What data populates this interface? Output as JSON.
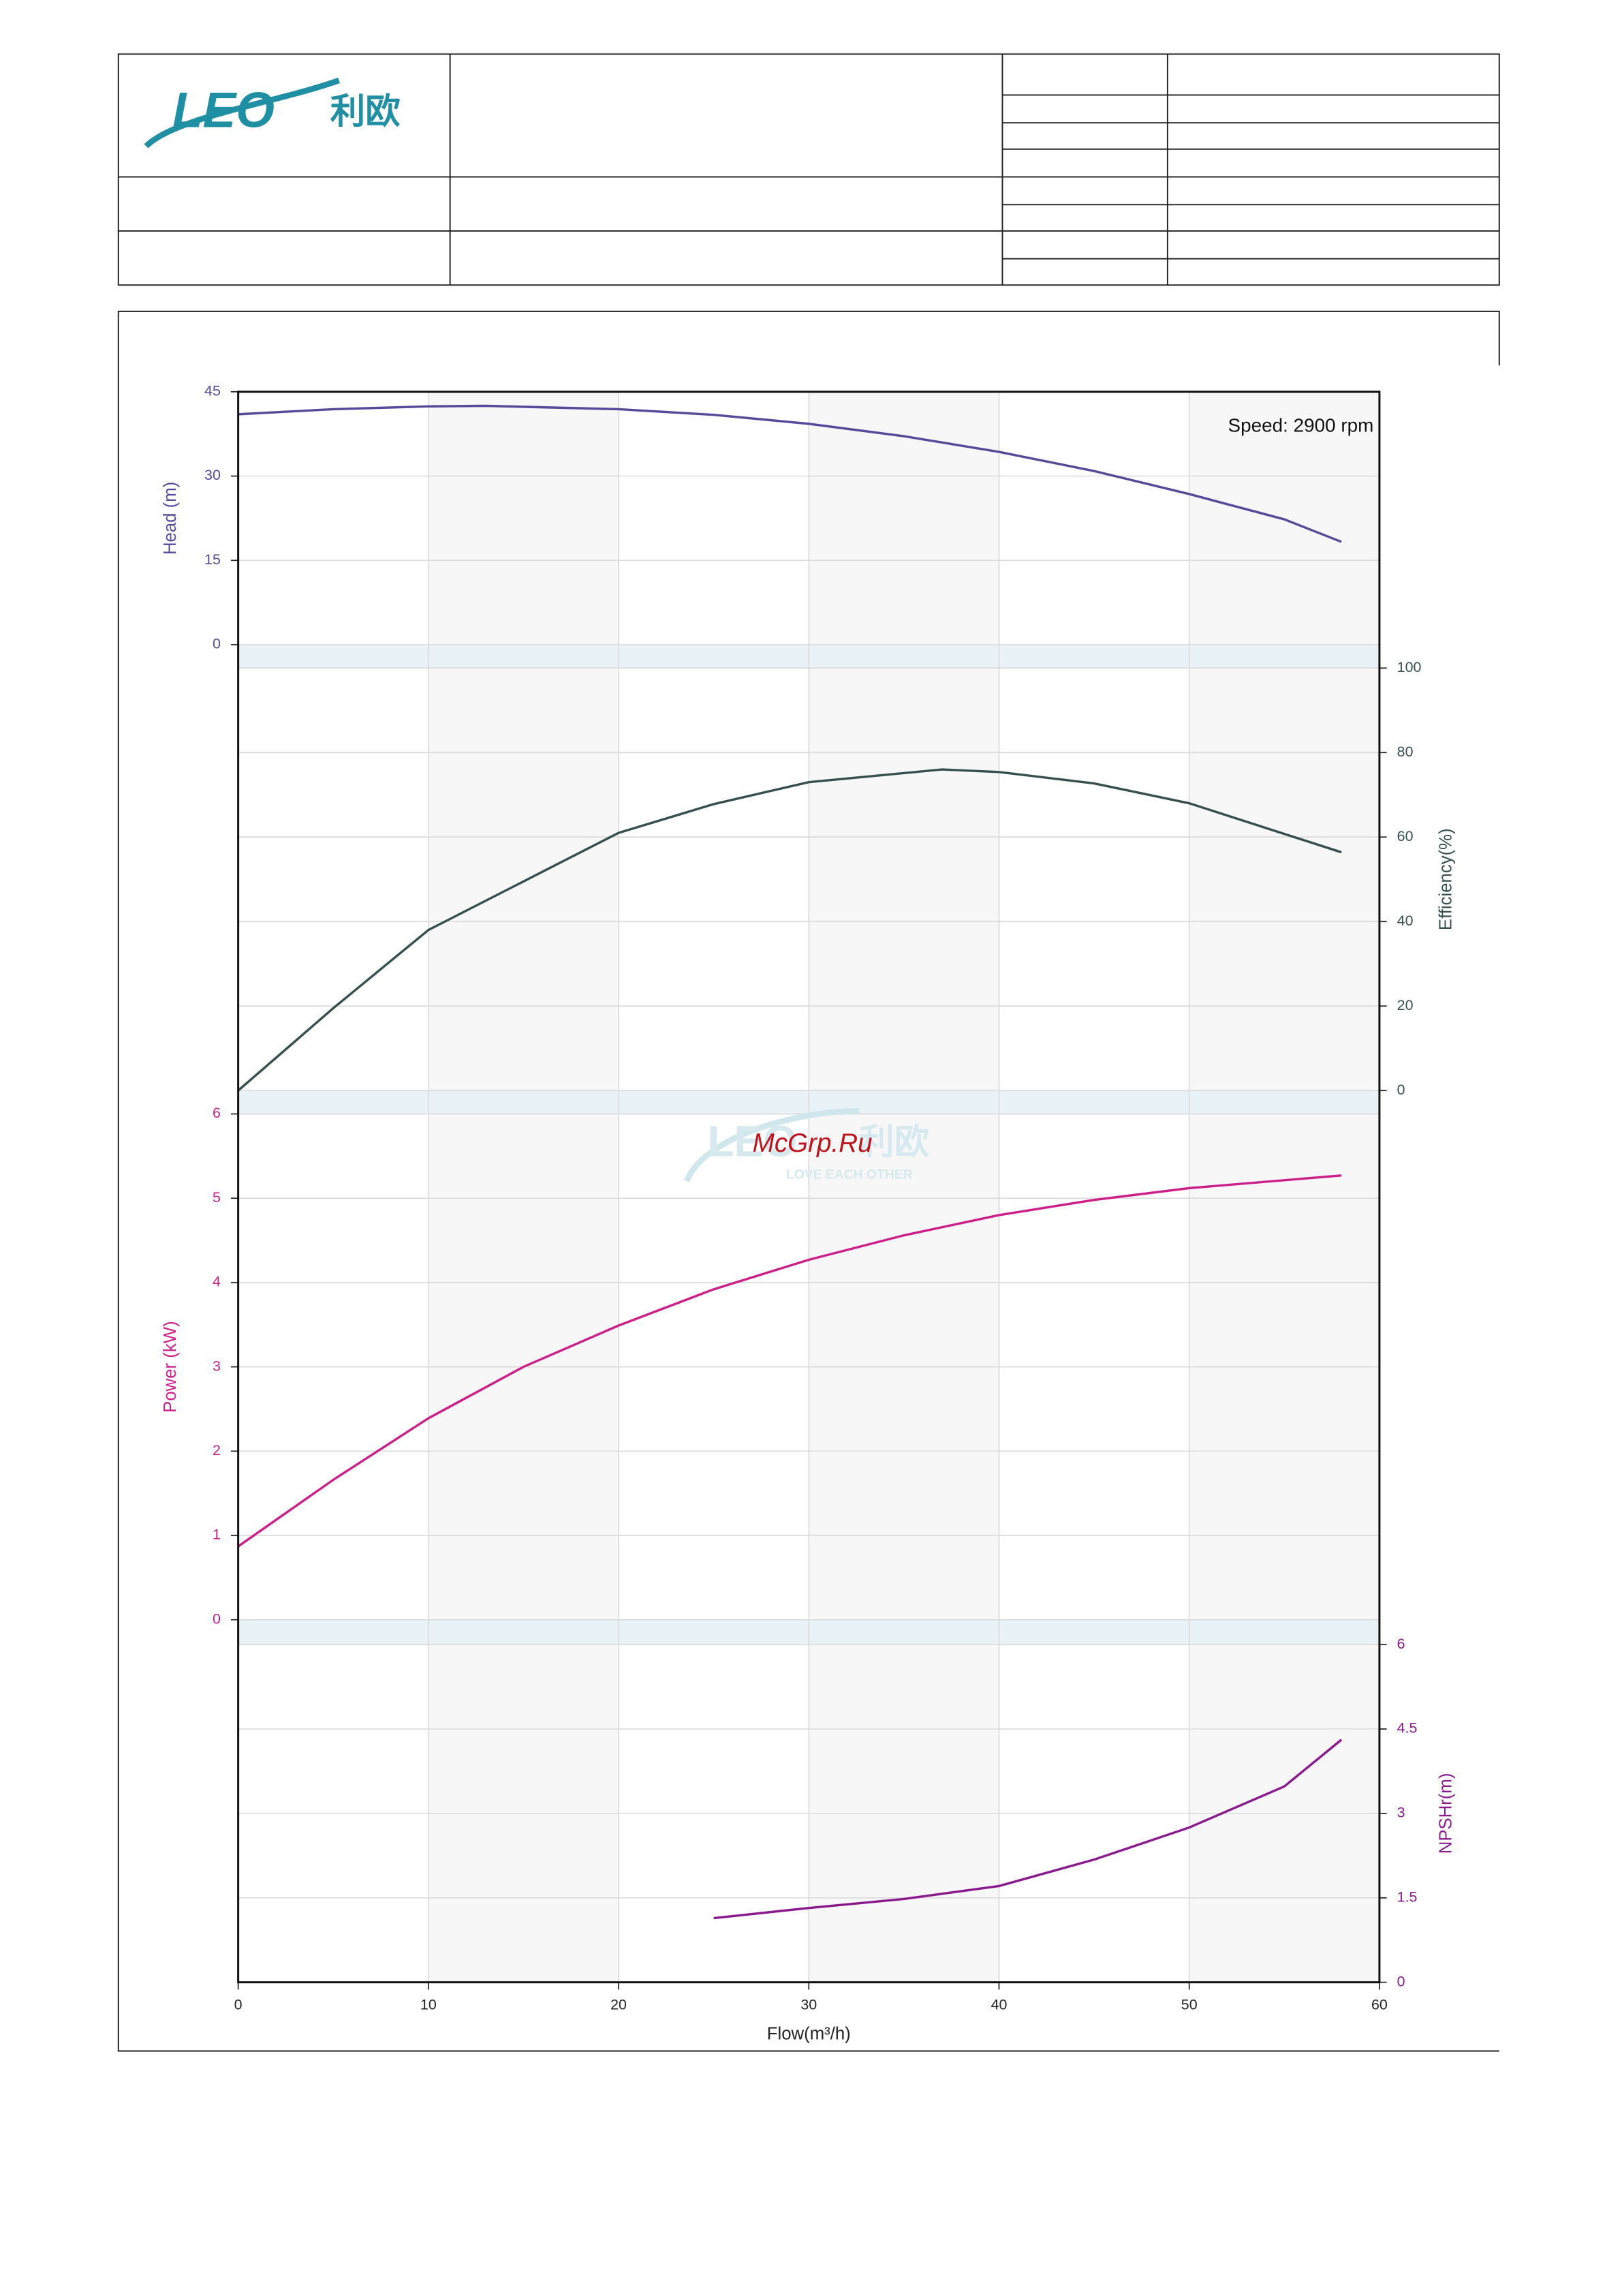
{
  "logo": {
    "name": "LEO",
    "chinese": "利欧"
  },
  "watermark": {
    "text": "McGrp.Ru",
    "logo": "LEO",
    "logo_chinese": "利欧",
    "slogan": "LOVE EACH OTHER"
  },
  "chart_data": [
    {
      "type": "line",
      "annotation": "Speed: 2900 rpm",
      "ylabel": "Head (m)",
      "y_axis_side": "left",
      "color": "#574a9b",
      "xlim": [
        0,
        60
      ],
      "ylim": [
        0,
        45
      ],
      "yticks": [
        0,
        15,
        30,
        45
      ],
      "x": [
        0,
        5,
        10,
        13,
        20,
        25,
        30,
        35,
        40,
        45,
        50,
        55,
        58
      ],
      "values": [
        41,
        41.9,
        42.4,
        42.5,
        41.9,
        40.9,
        39.3,
        37.1,
        34.3,
        30.9,
        26.8,
        22.3,
        18.3
      ]
    },
    {
      "type": "line",
      "ylabel": "Efficiency(%)",
      "y_axis_side": "right",
      "color": "#35504f",
      "xlim": [
        0,
        60
      ],
      "ylim": [
        0,
        100
      ],
      "yticks": [
        0,
        20,
        40,
        60,
        80,
        100
      ],
      "x": [
        0,
        5,
        10,
        20,
        25,
        30,
        37,
        40,
        45,
        50,
        58
      ],
      "values": [
        0,
        19.5,
        38,
        61,
        67.8,
        73,
        76,
        75.4,
        72.7,
        68,
        56.4
      ]
    },
    {
      "type": "line",
      "ylabel": "Power (kW)",
      "y_axis_side": "left",
      "color": "#cc1f8a",
      "xlim": [
        0,
        60
      ],
      "ylim": [
        0,
        6
      ],
      "yticks": [
        0,
        1,
        2,
        3,
        4,
        5,
        6
      ],
      "x": [
        0,
        5,
        10,
        15,
        20,
        25,
        30,
        35,
        40,
        45,
        50,
        58
      ],
      "values": [
        0.87,
        1.66,
        2.39,
        3.0,
        3.49,
        3.92,
        4.27,
        4.56,
        4.8,
        4.98,
        5.12,
        5.27
      ]
    },
    {
      "type": "line",
      "ylabel": "NPSHr(m)",
      "y_axis_side": "right",
      "color": "#8b1a8e",
      "xlabel": "Flow(m³/h)",
      "xlim": [
        0,
        60
      ],
      "xticks": [
        0,
        10,
        20,
        30,
        40,
        50,
        60
      ],
      "ylim": [
        0,
        6
      ],
      "yticks": [
        0,
        1.5,
        3,
        4.5,
        6
      ],
      "x": [
        25,
        30,
        35,
        40,
        45,
        50,
        55,
        58
      ],
      "values": [
        1.14,
        1.32,
        1.48,
        1.71,
        2.18,
        2.75,
        3.48,
        4.31
      ]
    }
  ]
}
